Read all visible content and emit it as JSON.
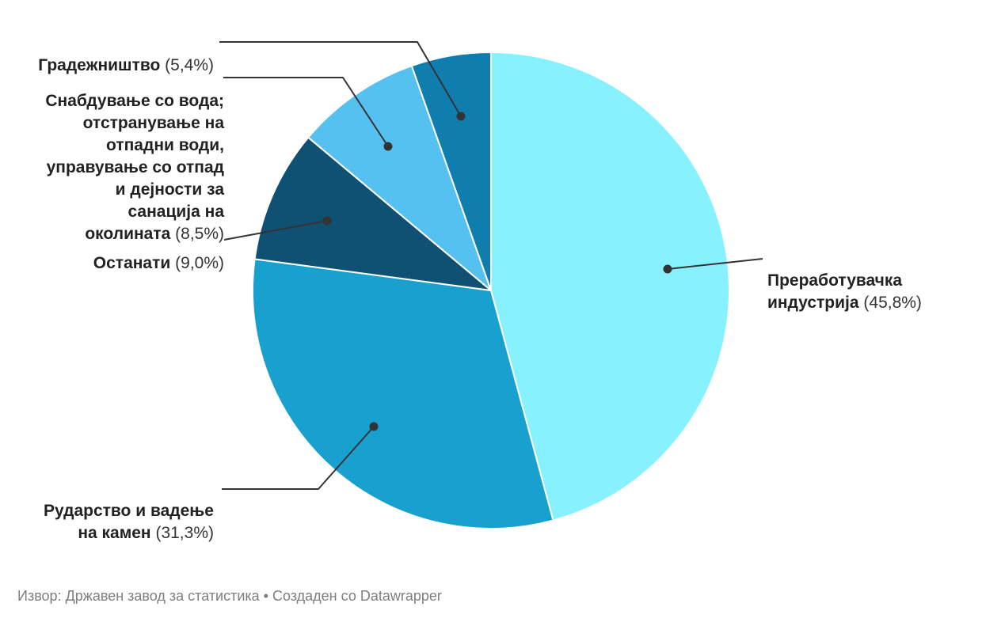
{
  "chart_data": {
    "type": "pie",
    "title": "",
    "labels": [
      "Преработувачка индустрија",
      "Рударство и вадење на камен",
      "Останати",
      "Снабдување со вода; отстранување на отпадни води, управување со отпад и дејности за санација на околината",
      "Градежништво"
    ],
    "slice_ids": [
      "manufacturing",
      "mining",
      "other",
      "water",
      "construction"
    ],
    "values": [
      45.8,
      31.3,
      9.0,
      8.5,
      5.4
    ],
    "value_labels": [
      "45,8%",
      "31,3%",
      "9,0%",
      "8,5%",
      "5,4%"
    ],
    "colors": [
      "#87F1FF",
      "#18A0CE",
      "#105073",
      "#55C1F0",
      "#0F7DAD"
    ],
    "slice_stroke_color": "#ffffff",
    "callout_line_color": "#333333",
    "start_angle_deg": 0,
    "direction": "clockwise",
    "legend_position": "callout-labels",
    "grid": false
  },
  "callouts": {
    "manufacturing": {
      "name": "Преработувачка\nиндустрија",
      "pct": " (45,8%)"
    },
    "mining": {
      "name": "Рударство и вадење\nна камен",
      "pct": " (31,3%)"
    },
    "other": {
      "name": "Останати",
      "pct": " (9,0%)"
    },
    "water": {
      "name": "Снабдување со вода;\nотстранување на\nотпадни води,\nуправување со отпад\nи дејности за\nсанација на\nоколината",
      "pct": " (8,5%)"
    },
    "construction": {
      "name": "Градежништво",
      "pct": " (5,4%)"
    }
  },
  "footer": {
    "text": "Извор: Државен завод за статистика • Создаден со Datawrapper"
  }
}
